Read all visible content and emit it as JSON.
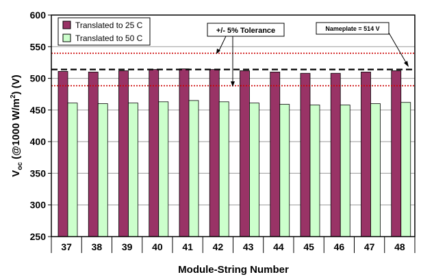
{
  "chart_data": {
    "type": "bar",
    "xlabel": "Module-String Number",
    "ylabel": {
      "prefix": "V",
      "sub": "oc",
      "mid": " (@1000 W/m",
      "sup": "2",
      "suffix": ") (V)"
    },
    "ylim": [
      250,
      600
    ],
    "yticks": [
      250,
      300,
      350,
      400,
      450,
      500,
      550,
      600
    ],
    "grid": true,
    "legend_position": "top-left",
    "categories": [
      "37",
      "38",
      "39",
      "40",
      "41",
      "42",
      "43",
      "44",
      "45",
      "46",
      "47",
      "48"
    ],
    "series": [
      {
        "name": "Translated to 25 C",
        "color": "#993366",
        "values": [
          511,
          510,
          512,
          514,
          515,
          514,
          512,
          510,
          508,
          508,
          510,
          512
        ]
      },
      {
        "name": "Translated to 50 C",
        "color": "#ccffcc",
        "values": [
          461,
          460,
          461,
          463,
          465,
          463,
          461,
          459,
          458,
          458,
          460,
          462
        ]
      }
    ],
    "reference_lines": [
      {
        "name": "nameplate",
        "value": 514,
        "style": "dashed",
        "color": "#000000"
      },
      {
        "name": "upper-tolerance",
        "value": 539.7,
        "style": "dotted",
        "color": "#cc0000"
      },
      {
        "name": "lower-tolerance",
        "value": 488.3,
        "style": "dotted",
        "color": "#cc0000"
      }
    ],
    "annotations": {
      "tolerance": "+/- 5% Tolerance",
      "nameplate": "Nameplate = 514 V"
    }
  }
}
